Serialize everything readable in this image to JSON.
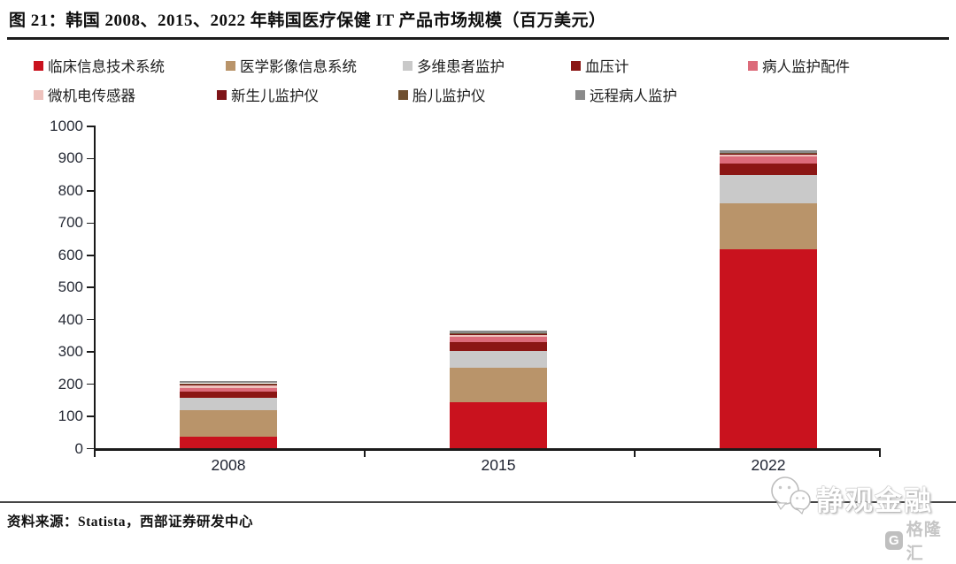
{
  "figure": {
    "title": "图 21：韩国 2008、2015、2022 年韩国医疗保健 IT 产品市场规模（百万美元）",
    "source": "资料来源：Statista，西部证券研发中心"
  },
  "watermark": {
    "brand": "静观金融",
    "logo_letter": "G",
    "logo_text": "格隆汇",
    "wechat_icon": "wechat-bubbles-icon"
  },
  "chart_data": {
    "type": "bar",
    "stacked": true,
    "title": "图 21：韩国 2008、2015、2022 年韩国医疗保健 IT 产品市场规模（百万美元）",
    "xlabel": "",
    "ylabel": "",
    "units": "百万美元",
    "categories": [
      "2008",
      "2015",
      "2022"
    ],
    "series": [
      {
        "name": "临床信息技术系统",
        "color": "#c9121e",
        "values": [
          38,
          145,
          620
        ]
      },
      {
        "name": "医学影像信息系统",
        "color": "#b9946a",
        "values": [
          81,
          107,
          141
        ]
      },
      {
        "name": "多维患者监护",
        "color": "#c9c9c9",
        "values": [
          39,
          51,
          87
        ]
      },
      {
        "name": "血压计",
        "color": "#8b1614",
        "values": [
          19,
          28,
          38
        ]
      },
      {
        "name": "病人监护配件",
        "color": "#dc6b7a",
        "values": [
          12,
          16,
          20
        ]
      },
      {
        "name": "微机电传感器",
        "color": "#eec2bd",
        "values": [
          7,
          7,
          7
        ]
      },
      {
        "name": "新生儿监护仪",
        "color": "#7e1417",
        "values": [
          3,
          2,
          3
        ]
      },
      {
        "name": "胎儿监护仪",
        "color": "#6f4f2f",
        "values": [
          4,
          3,
          3
        ]
      },
      {
        "name": "远程病人监护",
        "color": "#8a8a8a",
        "values": [
          8,
          6,
          8
        ]
      }
    ],
    "totals": [
      211,
      365,
      927
    ],
    "ylim": [
      0,
      1000
    ],
    "yticks": [
      0,
      100,
      200,
      300,
      400,
      500,
      600,
      700,
      800,
      900,
      1000
    ],
    "grid": false,
    "legend_position": "top"
  }
}
